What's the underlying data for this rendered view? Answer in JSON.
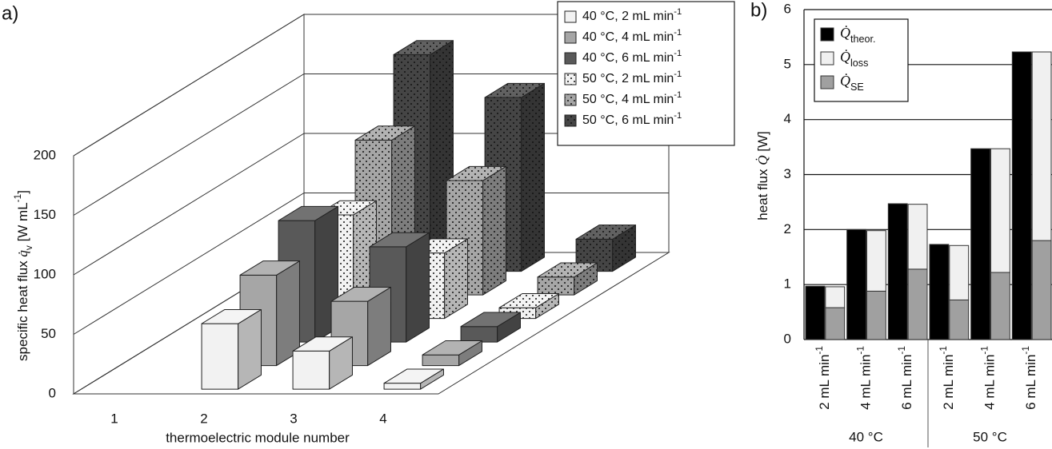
{
  "chart_data": [
    {
      "type": "bar3d",
      "panel": "a)",
      "ylabel": [
        {
          "text": "specific heat flux "
        },
        {
          "text": "q̇",
          "style": "italic"
        },
        {
          "text": "v",
          "shift": "sub"
        },
        {
          "text": " [W mL"
        },
        {
          "text": "-1",
          "shift": "super"
        },
        {
          "text": "]"
        }
      ],
      "xlabel": "thermoelectric module number",
      "categories": [
        "1",
        "2",
        "3",
        "4"
      ],
      "zlim": [
        0,
        200
      ],
      "zticks": [
        0,
        50,
        100,
        150,
        200
      ],
      "grid": true,
      "series": [
        {
          "name": [
            {
              "text": "40 °C, 2 mL min"
            },
            {
              "text": "-1",
              "shift": "super"
            }
          ],
          "color": "#f2f2f2",
          "values": [
            null,
            55,
            32,
            5
          ]
        },
        {
          "name": [
            {
              "text": "40 °C, 4 mL min"
            },
            {
              "text": "-1",
              "shift": "super"
            }
          ],
          "color": "#a6a6a6",
          "values": [
            null,
            76,
            54,
            9
          ]
        },
        {
          "name": [
            {
              "text": "40 °C, 6 mL min"
            },
            {
              "text": "-1",
              "shift": "super"
            }
          ],
          "color": "#595959",
          "values": [
            null,
            102,
            80,
            13
          ]
        },
        {
          "name": [
            {
              "text": "50 °C, 2 mL min"
            },
            {
              "text": "-1",
              "shift": "super"
            }
          ],
          "color": "#f2f2f2",
          "pattern": "dots",
          "values": [
            null,
            87,
            55,
            9
          ]
        },
        {
          "name": [
            {
              "text": "50 °C, 4 mL min"
            },
            {
              "text": "-1",
              "shift": "super"
            }
          ],
          "color": "#a6a6a6",
          "pattern": "dots",
          "values": [
            null,
            130,
            96,
            15
          ]
        },
        {
          "name": [
            {
              "text": "50 °C, 6 mL min"
            },
            {
              "text": "-1",
              "shift": "super"
            }
          ],
          "color": "#454545",
          "pattern": "dots",
          "values": [
            null,
            182,
            146,
            27
          ]
        }
      ]
    },
    {
      "type": "bar",
      "panel": "b)",
      "ylabel": [
        {
          "text": "heat flux "
        },
        {
          "text": "Q̇",
          "style": "italic"
        },
        {
          "text": " [W]"
        }
      ],
      "categories": [
        [
          {
            "text": "2 mL min"
          },
          {
            "text": "-1",
            "shift": "super"
          }
        ],
        [
          {
            "text": "4 mL min"
          },
          {
            "text": "-1",
            "shift": "super"
          }
        ],
        [
          {
            "text": "6 mL min"
          },
          {
            "text": "-1",
            "shift": "super"
          }
        ],
        [
          {
            "text": "2 mL min"
          },
          {
            "text": "-1",
            "shift": "super"
          }
        ],
        [
          {
            "text": "4 mL min"
          },
          {
            "text": "-1",
            "shift": "super"
          }
        ],
        [
          {
            "text": "6 mL min"
          },
          {
            "text": "-1",
            "shift": "super"
          }
        ]
      ],
      "group_labels": [
        "40 °C",
        "50 °C"
      ],
      "ylim": [
        0,
        6
      ],
      "yticks": [
        0,
        1,
        2,
        3,
        4,
        5,
        6
      ],
      "grid": true,
      "series": [
        {
          "name": [
            {
              "text": "Q̇",
              "style": "italic"
            },
            {
              "text": "theor.",
              "shift": "sub"
            }
          ],
          "color": "#000000",
          "stack": 0,
          "values": [
            0.97,
            2.0,
            2.47,
            1.73,
            3.47,
            5.23
          ]
        },
        {
          "name": [
            {
              "text": "Q̇",
              "style": "italic"
            },
            {
              "text": "loss",
              "shift": "sub"
            }
          ],
          "color": "#f0f0f0",
          "stack": 1,
          "values": [
            0.38,
            1.1,
            1.18,
            0.99,
            2.25,
            3.43
          ]
        },
        {
          "name": [
            {
              "text": "Q̇",
              "style": "italic"
            },
            {
              "text": "SE",
              "shift": "sub"
            }
          ],
          "color": "#a0a0a0",
          "stack": 1,
          "values": [
            0.58,
            0.88,
            1.28,
            0.72,
            1.22,
            1.8
          ]
        }
      ]
    }
  ]
}
